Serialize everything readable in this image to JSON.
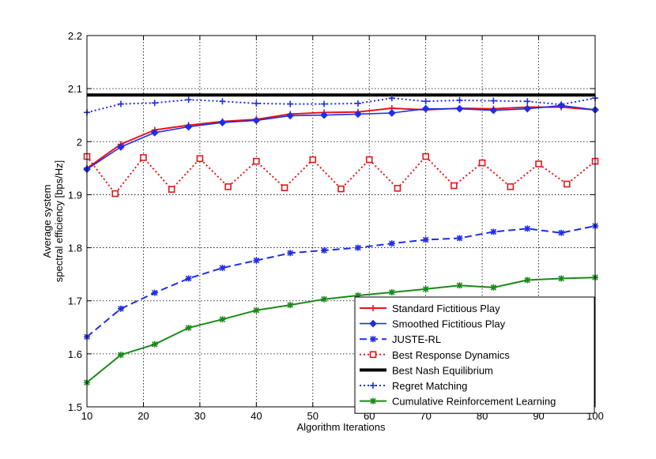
{
  "chart_data": {
    "type": "line",
    "title": "",
    "xlabel": "Algorithm Iterations",
    "ylabel_lines": [
      "Average system",
      "spectral efficiency [bps/Hz]"
    ],
    "xlim": [
      10,
      100
    ],
    "ylim": [
      1.5,
      2.2
    ],
    "xticks": [
      10,
      20,
      30,
      40,
      50,
      60,
      70,
      80,
      90,
      100
    ],
    "yticks": [
      1.5,
      1.6,
      1.7,
      1.8,
      1.9,
      2,
      2.1,
      2.2
    ],
    "xtick_labels": [
      "10",
      "20",
      "30",
      "40",
      "50",
      "60",
      "70",
      "80",
      "90",
      "100"
    ],
    "ytick_labels": [
      "1.5",
      "1.6",
      "1.7",
      "1.8",
      "1.9",
      "2",
      "2.1",
      "2.2"
    ],
    "grid": true,
    "legend_position": "bottom-right",
    "series": [
      {
        "name": "Standard Fictitious Play",
        "color": "#e8141a",
        "dash": "solid",
        "marker": "plus",
        "width": 2,
        "x": [
          10,
          16,
          22,
          28,
          34,
          40,
          46,
          52,
          58,
          64,
          70,
          76,
          82,
          88,
          94,
          100
        ],
        "y": [
          1.95,
          1.995,
          2.022,
          2.031,
          2.038,
          2.042,
          2.052,
          2.055,
          2.056,
          2.063,
          2.06,
          2.063,
          2.062,
          2.065,
          2.065,
          2.06
        ]
      },
      {
        "name": "Smoothed Fictitious Play",
        "color": "#1f2ee6",
        "dash": "solid",
        "marker": "diamond",
        "width": 1.6,
        "x": [
          10,
          16,
          22,
          28,
          34,
          40,
          46,
          52,
          58,
          64,
          70,
          76,
          82,
          88,
          94,
          100
        ],
        "y": [
          1.948,
          1.99,
          2.017,
          2.028,
          2.036,
          2.04,
          2.049,
          2.05,
          2.052,
          2.054,
          2.062,
          2.062,
          2.059,
          2.062,
          2.068,
          2.06
        ]
      },
      {
        "name": "JUSTE-RL",
        "color": "#1f2ee6",
        "dash": "dashed",
        "marker": "star",
        "width": 2,
        "x": [
          10,
          16,
          22,
          28,
          34,
          40,
          46,
          52,
          58,
          64,
          70,
          76,
          82,
          88,
          94,
          100
        ],
        "y": [
          1.632,
          1.685,
          1.715,
          1.742,
          1.762,
          1.776,
          1.79,
          1.795,
          1.8,
          1.808,
          1.815,
          1.818,
          1.83,
          1.836,
          1.828,
          1.841
        ]
      },
      {
        "name": "Best Response Dynamics",
        "color": "#e8141a",
        "dash": "dotted",
        "marker": "square",
        "width": 2,
        "x": [
          10,
          15,
          20,
          25,
          30,
          35,
          40,
          45,
          50,
          55,
          60,
          65,
          70,
          75,
          80,
          85,
          90,
          95,
          100
        ],
        "y": [
          1.972,
          1.902,
          1.97,
          1.91,
          1.968,
          1.915,
          1.963,
          1.913,
          1.966,
          1.911,
          1.966,
          1.912,
          1.972,
          1.917,
          1.96,
          1.915,
          1.958,
          1.92,
          1.963
        ]
      },
      {
        "name": "Best Nash Equilibrium",
        "color": "#000000",
        "dash": "solid",
        "marker": "none",
        "width": 4,
        "x": [
          10,
          100
        ],
        "y": [
          2.088,
          2.088
        ]
      },
      {
        "name": "Regret Matching",
        "color": "#1f2ee6",
        "dash": "dotted",
        "marker": "plus",
        "width": 2,
        "x": [
          10,
          16,
          22,
          28,
          34,
          40,
          46,
          52,
          58,
          64,
          70,
          76,
          82,
          88,
          94,
          100
        ],
        "y": [
          2.055,
          2.071,
          2.073,
          2.079,
          2.076,
          2.072,
          2.071,
          2.071,
          2.072,
          2.082,
          2.076,
          2.078,
          2.077,
          2.076,
          2.07,
          2.082
        ]
      },
      {
        "name": "Cumulative Reinforcement Learning",
        "color": "#1a8a1a",
        "dash": "solid",
        "marker": "star",
        "width": 2,
        "x": [
          10,
          16,
          22,
          28,
          34,
          40,
          46,
          52,
          58,
          64,
          70,
          76,
          82,
          88,
          94,
          100
        ],
        "y": [
          1.546,
          1.598,
          1.618,
          1.649,
          1.665,
          1.682,
          1.692,
          1.703,
          1.71,
          1.716,
          1.722,
          1.729,
          1.725,
          1.739,
          1.742,
          1.744
        ]
      }
    ]
  }
}
